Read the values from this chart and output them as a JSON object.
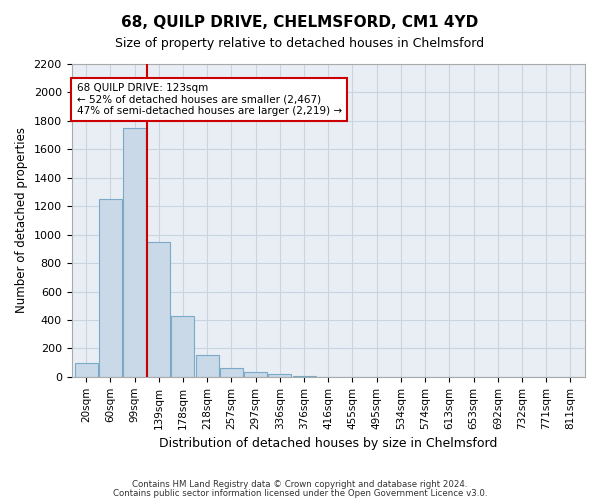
{
  "title": "68, QUILP DRIVE, CHELMSFORD, CM1 4YD",
  "subtitle": "Size of property relative to detached houses in Chelmsford",
  "xlabel": "Distribution of detached houses by size in Chelmsford",
  "ylabel": "Number of detached properties",
  "footer_line1": "Contains HM Land Registry data © Crown copyright and database right 2024.",
  "footer_line2": "Contains public sector information licensed under the Open Government Licence v3.0.",
  "bins": [
    "20sqm",
    "60sqm",
    "99sqm",
    "139sqm",
    "178sqm",
    "218sqm",
    "257sqm",
    "297sqm",
    "336sqm",
    "376sqm",
    "416sqm",
    "455sqm",
    "495sqm",
    "534sqm",
    "574sqm",
    "613sqm",
    "653sqm",
    "692sqm",
    "732sqm",
    "771sqm",
    "811sqm"
  ],
  "bar_values": [
    100,
    1250,
    1750,
    950,
    425,
    150,
    65,
    35,
    20,
    5,
    2,
    1,
    0,
    0,
    0,
    0,
    0,
    0,
    0,
    0,
    0
  ],
  "bar_color": "#c9d9e8",
  "bar_edge_color": "#7aaac8",
  "vline_bin_index": 2,
  "vline_color": "#cc0000",
  "annotation_text": "68 QUILP DRIVE: 123sqm\n← 52% of detached houses are smaller (2,467)\n47% of semi-detached houses are larger (2,219) →",
  "annotation_box_color": "#ffffff",
  "annotation_box_edge": "#cc0000",
  "ylim": [
    0,
    2200
  ],
  "yticks": [
    0,
    200,
    400,
    600,
    800,
    1000,
    1200,
    1400,
    1600,
    1800,
    2000,
    2200
  ],
  "grid_color": "#c8d4e0",
  "background_color": "#e8eef4"
}
